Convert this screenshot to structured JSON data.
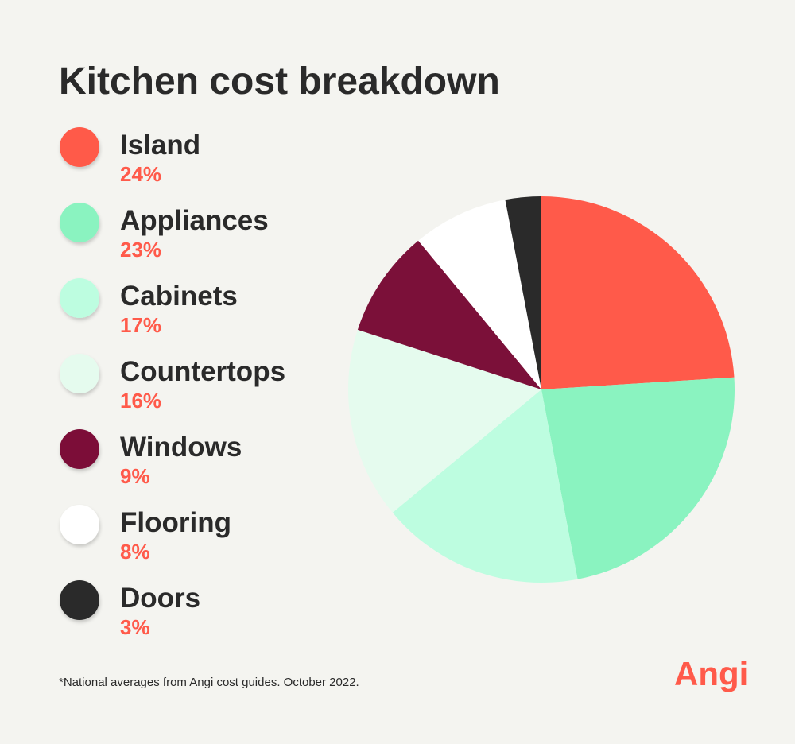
{
  "chart_data": {
    "type": "pie",
    "title": "Kitchen cost breakdown",
    "categories": [
      "Island",
      "Appliances",
      "Cabinets",
      "Countertops",
      "Windows",
      "Flooring",
      "Doors"
    ],
    "values": [
      24,
      23,
      17,
      16,
      9,
      8,
      3
    ],
    "value_labels": [
      "24%",
      "23%",
      "17%",
      "16%",
      "9%",
      "8%",
      "3%"
    ],
    "colors": [
      "#ff5a4a",
      "#8af3c0",
      "#bdfde0",
      "#e5fbee",
      "#7b1039",
      "#ffffff",
      "#2a2a2a"
    ],
    "note": "*National averages from Angi cost guides. October 2022.",
    "logo": "Angi"
  }
}
